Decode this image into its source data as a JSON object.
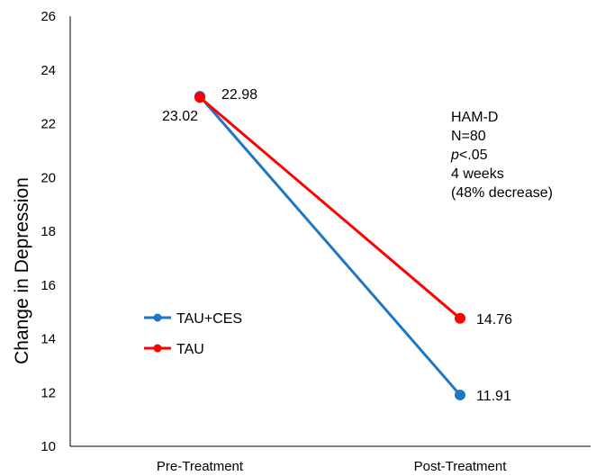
{
  "chart_data": {
    "type": "line",
    "categories": [
      "Pre-Treatment",
      "Post-Treatment"
    ],
    "series": [
      {
        "name": "TAU+CES",
        "values": [
          23.02,
          11.91
        ],
        "color": "#1f77c4",
        "labels": [
          "23.02",
          "11.91"
        ]
      },
      {
        "name": "TAU",
        "values": [
          22.98,
          14.76
        ],
        "color": "#ff0000",
        "labels": [
          "22.98",
          "14.76"
        ]
      }
    ],
    "title": "",
    "xlabel": "",
    "ylabel": "Change in Depression",
    "ylim": [
      10,
      26
    ],
    "yticks": [
      10,
      12,
      14,
      16,
      18,
      20,
      22,
      24,
      26
    ],
    "legend": "center-left",
    "grid": false,
    "annotations": {
      "measure": "HAM-D",
      "sample": "N=80",
      "p_symbol": "p",
      "p_rest": "<.05",
      "duration": "4 weeks",
      "decrease": "(48% decrease)"
    }
  }
}
